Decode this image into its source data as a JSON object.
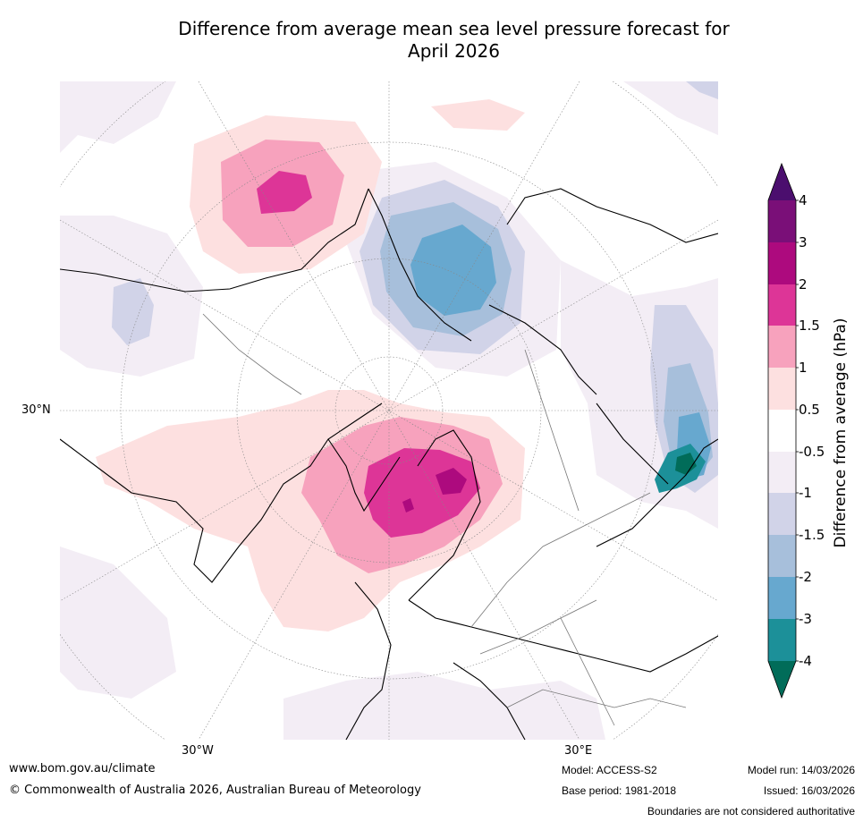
{
  "title_line1": "Difference from average mean sea level pressure forecast for",
  "title_line2": "April 2026",
  "labels": {
    "lat30": "30°N",
    "lon_w": "30°W",
    "lon_e": "30°E"
  },
  "colorbar": {
    "title": "Difference from average (hPa)",
    "ticks": [
      "4",
      "3",
      "2",
      "1.5",
      "1",
      "0.5",
      "-0.5",
      "-1",
      "-1.5",
      "-2",
      "-3",
      "-4"
    ],
    "colors": {
      "over": "#4b0e6e",
      "b3_4": "#7a0f78",
      "b2_3": "#ad0a7e",
      "b15_2": "#dd3597",
      "b1_15": "#f7a2bd",
      "b05_1": "#fde0e0",
      "neutral": "#ffffff",
      "bm1_m05": "#f3edf5",
      "bm15_m1": "#d1d3e8",
      "bm2_m15": "#a7bfdb",
      "bm3_m2": "#67a8cf",
      "bm4_m3": "#1c9099",
      "under": "#016c59"
    }
  },
  "footer": {
    "url": "www.bom.gov.au/climate",
    "copyright": "© Commonwealth of Australia 2026, Australian Bureau of Meteorology",
    "model": "Model: ACCESS-S2",
    "base_period": "Base period: 1981-2018",
    "model_run": "Model run: 14/03/2026",
    "issued": "Issued: 16/03/2026",
    "disclaimer": "Boundaries are not considered authoritative"
  }
}
